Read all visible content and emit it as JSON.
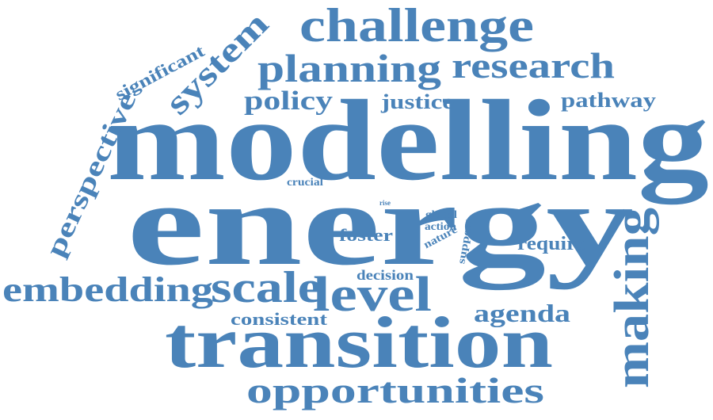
{
  "style": {
    "word_color": "#4a83b9",
    "background": "#ffffff"
  },
  "words": {
    "modelling": "modelling",
    "energy": "energy",
    "transition": "transition",
    "challenge": "challenge",
    "planning": "planning",
    "research": "research",
    "opportunities": "opportunities",
    "embedding": "embedding",
    "scale": "scale",
    "level": "level",
    "making": "making",
    "system": "system",
    "policy": "policy",
    "justice": "justice",
    "pathway": "pathway",
    "perspective": "perspective",
    "significant": "significant",
    "agenda": "agenda",
    "consistent": "consistent",
    "decision": "decision",
    "foster": "foster",
    "require": "require",
    "crucial": "crucial",
    "rise": "rise",
    "global": "global",
    "action": "action",
    "nature": "nature",
    "support": "support"
  }
}
